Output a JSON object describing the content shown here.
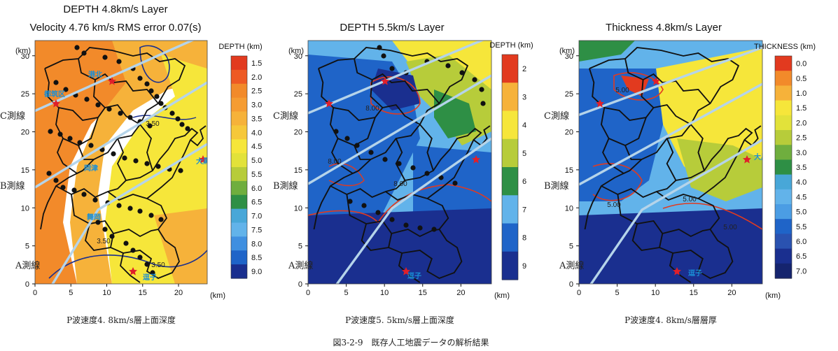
{
  "figure_caption": "図3-2-9　既存人工地震データの解析結果",
  "colors": {
    "red": "#e23a1f",
    "orange": "#f28a2a",
    "amber": "#f6b23a",
    "yellow": "#f6e63a",
    "lime": "#b7cc3a",
    "green": "#2e8f45",
    "sky": "#62b3ea",
    "blue": "#1f64c8",
    "navy": "#1a2f8f",
    "survey_line": "#b5d4ea",
    "boundary": "#111111",
    "star": "#e0202a",
    "place_text": "#1a8fd6"
  },
  "panels": [
    {
      "title_lines": [
        "DEPTH 4.8km/s Layer",
        "Velocity 4.76 km/s RMS error 0.07(s)"
      ],
      "caption": "P波速度4. 8km/s層上面深度",
      "axis_unit_y": "(km)",
      "axis_unit_x": "(km)",
      "x_ticks": [
        "0",
        "5",
        "10",
        "15",
        "20"
      ],
      "y_ticks": [
        "30",
        "25",
        "20",
        "15",
        "10",
        "5",
        "0"
      ],
      "colorbar_title": "DEPTH (km)",
      "colorbar_labels": [
        "1.5",
        "2.0",
        "2.5",
        "3.0",
        "3.5",
        "4.0",
        "4.5",
        "5.0",
        "5.5",
        "6.0",
        "6.5",
        "7.0",
        "7.5",
        "8.0",
        "8.5",
        "9.0"
      ],
      "survey_lines": [
        "C測線",
        "B測線",
        "A測線"
      ],
      "place_labels": [
        "港北",
        "都筑区",
        "岡津",
        "舞岡",
        "大黒",
        "逗子"
      ],
      "contour_labels": [
        "3.50",
        "3.50",
        "3.50"
      ]
    },
    {
      "title_lines": [
        "DEPTH 5.5km/s Layer"
      ],
      "caption": "P波速度5. 5km/s層上面深度",
      "axis_unit_y": "(km)",
      "axis_unit_x": "(km)",
      "x_ticks": [
        "0",
        "5",
        "10",
        "15",
        "20"
      ],
      "y_ticks": [
        "30",
        "25",
        "20",
        "15",
        "10",
        "5",
        "0"
      ],
      "colorbar_title": "DEPTH (km)",
      "colorbar_labels": [
        "2",
        "3",
        "4",
        "5",
        "6",
        "7",
        "8",
        "9"
      ],
      "survey_lines": [
        "C測線",
        "B測線",
        "A測線"
      ],
      "place_labels": [
        "逗子"
      ],
      "contour_labels": [
        "8.00",
        "8.00",
        "8.00"
      ]
    },
    {
      "title_lines": [
        "Thickness 4.8km/s Layer"
      ],
      "caption": "P波速度4. 8km/s層層厚",
      "axis_unit_y": "(km)",
      "axis_unit_x": "(km)",
      "x_ticks": [
        "0",
        "5",
        "10",
        "15",
        "20"
      ],
      "y_ticks": [
        "30",
        "25",
        "20",
        "15",
        "10",
        "5",
        "0"
      ],
      "colorbar_title": "THICKNESS (km)",
      "colorbar_labels": [
        "0.0",
        "0.5",
        "1.0",
        "1.5",
        "2.0",
        "2.5",
        "3.0",
        "3.5",
        "4.0",
        "4.5",
        "5.0",
        "5.5",
        "6.0",
        "6.5",
        "7.0"
      ],
      "survey_lines": [
        "C測線",
        "B測線",
        "A測線"
      ],
      "place_labels": [
        "大黒",
        "逗子"
      ],
      "contour_labels": [
        "5.00",
        "5.00",
        "5.00",
        "5.00"
      ]
    }
  ]
}
